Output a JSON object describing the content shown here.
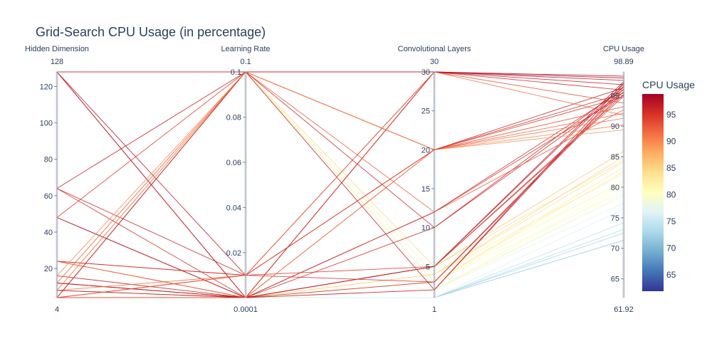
{
  "chart_data": {
    "type": "parallel_coordinates",
    "title": "Grid-Search CPU Usage (in percentage)",
    "axes": [
      {
        "name": "Hidden Dimension",
        "range": [
          4,
          128
        ],
        "range_labels": [
          "128",
          "4"
        ],
        "ticks": [
          20,
          40,
          60,
          80,
          100,
          120
        ],
        "tick_labels": [
          "20",
          "40",
          "60",
          "80",
          "100",
          "120"
        ]
      },
      {
        "name": "Learning Rate",
        "range": [
          0.0001,
          0.1
        ],
        "range_labels": [
          "0.1",
          "0.0001"
        ],
        "ticks": [
          0.02,
          0.04,
          0.06,
          0.08,
          0.1
        ],
        "tick_labels": [
          "0.02",
          "0.04",
          "0.06",
          "0.08",
          "0.1"
        ]
      },
      {
        "name": "Convolutional Layers",
        "range": [
          1,
          30
        ],
        "range_labels": [
          "30",
          "1"
        ],
        "ticks": [
          5,
          10,
          15,
          20,
          25,
          30
        ],
        "tick_labels": [
          "5",
          "10",
          "15",
          "20",
          "25",
          "30"
        ]
      },
      {
        "name": "CPU Usage",
        "range": [
          61.92,
          98.89
        ],
        "range_labels": [
          "98.89",
          "61.92"
        ],
        "ticks": [
          65,
          70,
          75,
          80,
          85,
          90,
          95
        ],
        "tick_labels": [
          "65",
          "70",
          "75",
          "80",
          "85",
          "90",
          "95"
        ]
      }
    ],
    "colorbar": {
      "title": "CPU Usage",
      "colorscale": "RdYlBu reversed",
      "range": [
        61.92,
        98.89
      ],
      "ticks": [
        65,
        70,
        75,
        80,
        85,
        90,
        95
      ],
      "tick_labels": [
        "65",
        "70",
        "75",
        "80",
        "85",
        "90",
        "95"
      ]
    },
    "value_sets": {
      "hidden_dimension": [
        4,
        8,
        12,
        16,
        24,
        48,
        64,
        128
      ],
      "learning_rate": [
        0.0001,
        0.001,
        0.01,
        0.1
      ],
      "convolutional_layers": [
        1,
        2,
        3,
        4,
        5,
        10,
        12,
        20,
        30
      ]
    },
    "approximate_lines": [
      [
        4,
        0.0001,
        1,
        72.5
      ],
      [
        4,
        0.0001,
        1,
        73.1
      ],
      [
        4,
        0.0001,
        1,
        71.3
      ],
      [
        8,
        0.0001,
        1,
        74.2
      ],
      [
        4,
        0.0001,
        2,
        77.4
      ],
      [
        8,
        0.0001,
        2,
        78.6
      ],
      [
        4,
        0.0001,
        3,
        79.3
      ],
      [
        12,
        0.0001,
        2,
        80.4
      ],
      [
        4,
        0.0001,
        3,
        81.1
      ],
      [
        8,
        0.0001,
        4,
        82.2
      ],
      [
        16,
        0.0001,
        3,
        83.3
      ],
      [
        4,
        0.0001,
        4,
        84.1
      ],
      [
        12,
        0.0001,
        4,
        85.0
      ],
      [
        8,
        0.0001,
        5,
        85.9
      ],
      [
        4,
        0.0001,
        2,
        79.8
      ],
      [
        16,
        0.0001,
        1,
        76.4
      ],
      [
        4,
        0.1,
        4,
        80.7
      ],
      [
        4,
        0.1,
        3,
        82.6
      ],
      [
        8,
        0.1,
        5,
        84.4
      ],
      [
        4,
        0.1,
        2,
        78.9
      ],
      [
        128,
        0.1,
        30,
        96.8
      ],
      [
        128,
        0.01,
        30,
        97.5
      ],
      [
        4,
        0.1,
        30,
        95.9
      ],
      [
        64,
        0.01,
        20,
        96.3
      ],
      [
        24,
        0.01,
        20,
        95.4
      ],
      [
        48,
        0.1,
        20,
        94.8
      ],
      [
        24,
        0.0001,
        12,
        95.1
      ],
      [
        48,
        0.0001,
        12,
        96.0
      ],
      [
        64,
        0.0001,
        10,
        95.6
      ],
      [
        4,
        0.1,
        10,
        96.4
      ],
      [
        128,
        0.0001,
        5,
        96.9
      ],
      [
        12,
        0.0001,
        5,
        95.2
      ],
      [
        48,
        0.0001,
        5,
        97.3
      ],
      [
        4,
        0.01,
        5,
        94.9
      ],
      [
        16,
        0.0001,
        3,
        96.1
      ],
      [
        24,
        0.01,
        3,
        95.7
      ],
      [
        64,
        0.1,
        2,
        96.6
      ],
      [
        128,
        0.0001,
        2,
        97.1
      ],
      [
        8,
        0.0001,
        30,
        98.2
      ],
      [
        12,
        0.0001,
        30,
        97.9
      ],
      [
        16,
        0.1,
        20,
        90.2
      ],
      [
        4,
        0.0001,
        20,
        89.4
      ],
      [
        8,
        0.1,
        20,
        91.3
      ],
      [
        24,
        0.0001,
        20,
        92.1
      ],
      [
        4,
        0.01,
        20,
        93.2
      ],
      [
        12,
        0.1,
        12,
        92.7
      ],
      [
        4,
        0.0001,
        30,
        93.8
      ],
      [
        8,
        0.01,
        30,
        91.8
      ]
    ]
  }
}
